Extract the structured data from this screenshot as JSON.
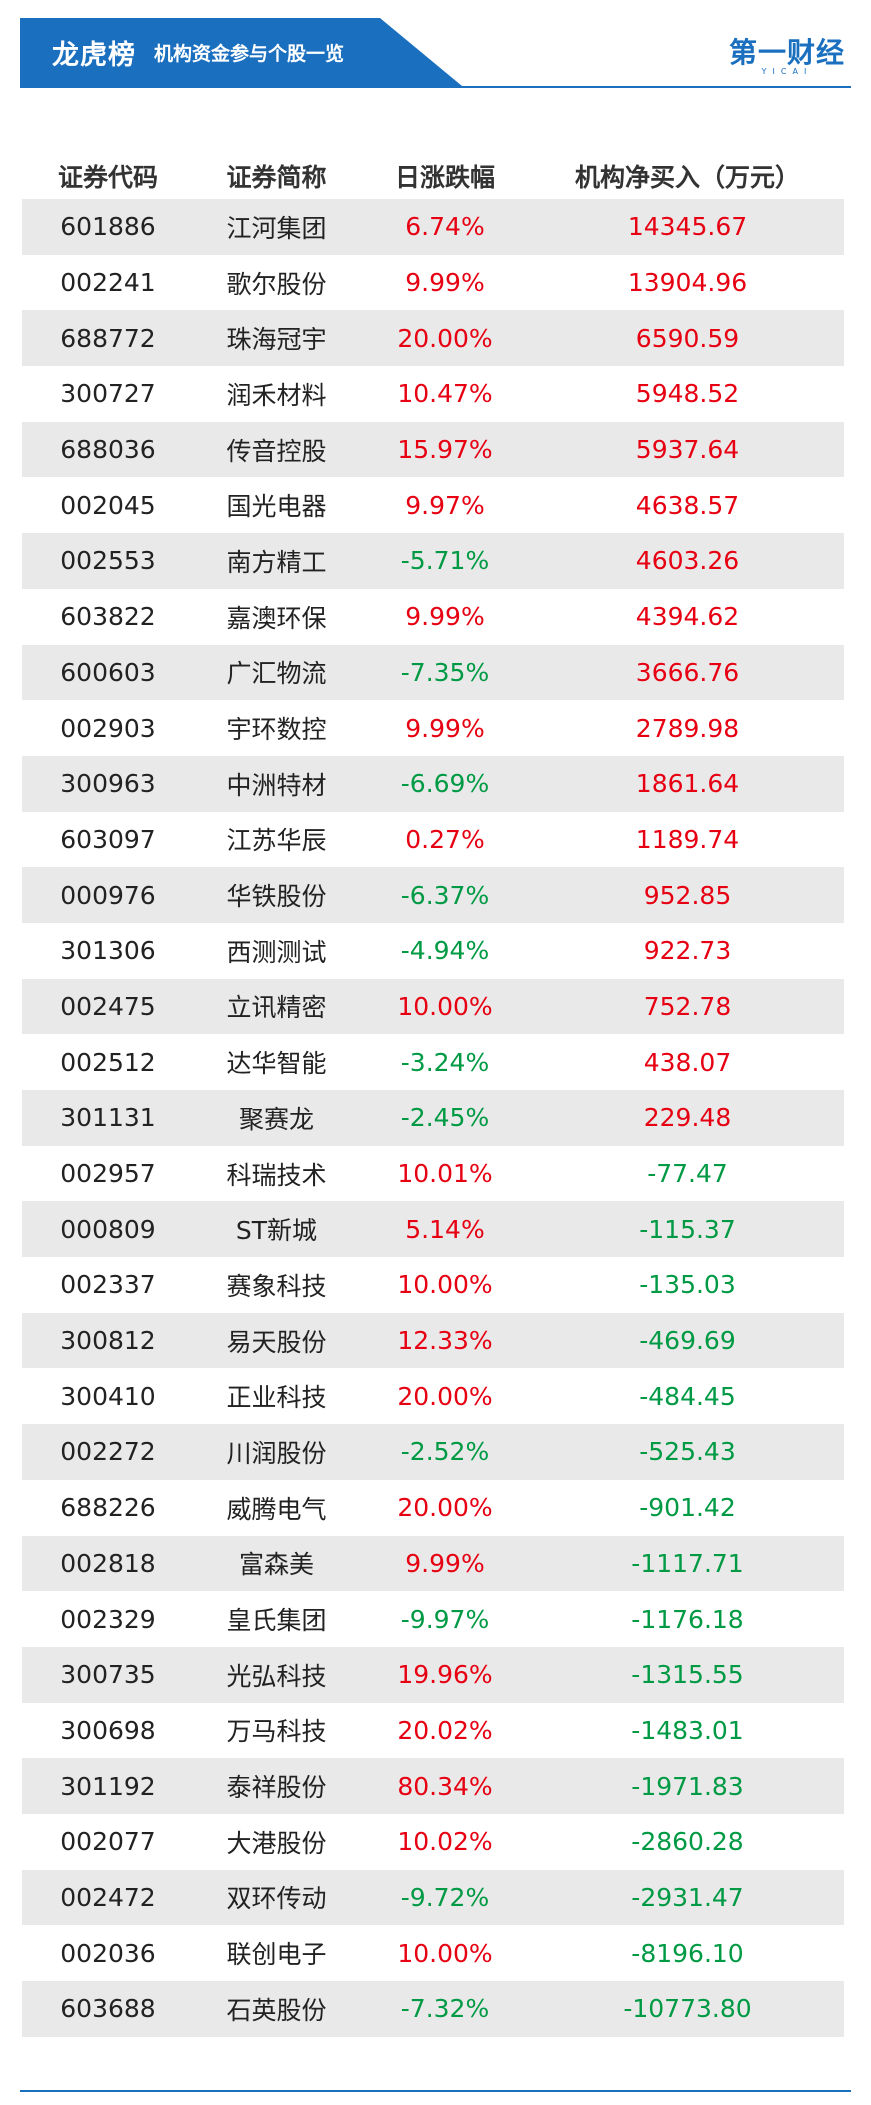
{
  "header": {
    "title": "龙虎榜",
    "subtitle": "机构资金参与个股一览",
    "logo_text": "第一财经",
    "logo_small": "YICAI",
    "brand_color": "#1a6fbf"
  },
  "table": {
    "columns": [
      "证券代码",
      "证券简称",
      "日涨跌幅",
      "机构净买入（万元）"
    ],
    "colors": {
      "up": "#e60012",
      "down": "#009a44"
    },
    "rows": [
      {
        "code": "601886",
        "name": "江河集团",
        "change": "6.74%",
        "net": "14345.67"
      },
      {
        "code": "002241",
        "name": "歌尔股份",
        "change": "9.99%",
        "net": "13904.96"
      },
      {
        "code": "688772",
        "name": "珠海冠宇",
        "change": "20.00%",
        "net": "6590.59"
      },
      {
        "code": "300727",
        "name": "润禾材料",
        "change": "10.47%",
        "net": "5948.52"
      },
      {
        "code": "688036",
        "name": "传音控股",
        "change": "15.97%",
        "net": "5937.64"
      },
      {
        "code": "002045",
        "name": "国光电器",
        "change": "9.97%",
        "net": "4638.57"
      },
      {
        "code": "002553",
        "name": "南方精工",
        "change": "-5.71%",
        "net": "4603.26"
      },
      {
        "code": "603822",
        "name": "嘉澳环保",
        "change": "9.99%",
        "net": "4394.62"
      },
      {
        "code": "600603",
        "name": "广汇物流",
        "change": "-7.35%",
        "net": "3666.76"
      },
      {
        "code": "002903",
        "name": "宇环数控",
        "change": "9.99%",
        "net": "2789.98"
      },
      {
        "code": "300963",
        "name": "中洲特材",
        "change": "-6.69%",
        "net": "1861.64"
      },
      {
        "code": "603097",
        "name": "江苏华辰",
        "change": "0.27%",
        "net": "1189.74"
      },
      {
        "code": "000976",
        "name": "华铁股份",
        "change": "-6.37%",
        "net": "952.85"
      },
      {
        "code": "301306",
        "name": "西测测试",
        "change": "-4.94%",
        "net": "922.73"
      },
      {
        "code": "002475",
        "name": "立讯精密",
        "change": "10.00%",
        "net": "752.78"
      },
      {
        "code": "002512",
        "name": "达华智能",
        "change": "-3.24%",
        "net": "438.07"
      },
      {
        "code": "301131",
        "name": "聚赛龙",
        "change": "-2.45%",
        "net": "229.48"
      },
      {
        "code": "002957",
        "name": "科瑞技术",
        "change": "10.01%",
        "net": "-77.47"
      },
      {
        "code": "000809",
        "name": "ST新城",
        "change": "5.14%",
        "net": "-115.37"
      },
      {
        "code": "002337",
        "name": "赛象科技",
        "change": "10.00%",
        "net": "-135.03"
      },
      {
        "code": "300812",
        "name": "易天股份",
        "change": "12.33%",
        "net": "-469.69"
      },
      {
        "code": "300410",
        "name": "正业科技",
        "change": "20.00%",
        "net": "-484.45"
      },
      {
        "code": "002272",
        "name": "川润股份",
        "change": "-2.52%",
        "net": "-525.43"
      },
      {
        "code": "688226",
        "name": "威腾电气",
        "change": "20.00%",
        "net": "-901.42"
      },
      {
        "code": "002818",
        "name": "富森美",
        "change": "9.99%",
        "net": "-1117.71"
      },
      {
        "code": "002329",
        "name": "皇氏集团",
        "change": "-9.97%",
        "net": "-1176.18"
      },
      {
        "code": "300735",
        "name": "光弘科技",
        "change": "19.96%",
        "net": "-1315.55"
      },
      {
        "code": "300698",
        "name": "万马科技",
        "change": "20.02%",
        "net": "-1483.01"
      },
      {
        "code": "301192",
        "name": "泰祥股份",
        "change": "80.34%",
        "net": "-1971.83"
      },
      {
        "code": "002077",
        "name": "大港股份",
        "change": "10.02%",
        "net": "-2860.28"
      },
      {
        "code": "002472",
        "name": "双环传动",
        "change": "-9.72%",
        "net": "-2931.47"
      },
      {
        "code": "002036",
        "name": "联创电子",
        "change": "10.00%",
        "net": "-8196.10"
      },
      {
        "code": "603688",
        "name": "石英股份",
        "change": "-7.32%",
        "net": "-10773.80"
      }
    ]
  }
}
